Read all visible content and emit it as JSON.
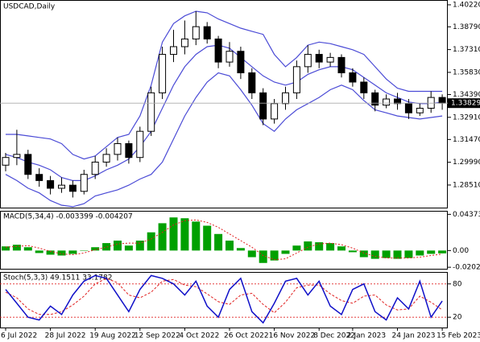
{
  "chart_data": [
    {
      "type": "candlestick",
      "title": "USDCAD,Daily",
      "categories": [
        "6 Jul 2022",
        null,
        null,
        null,
        "28 Jul 2022",
        null,
        null,
        null,
        "19 Aug 2022",
        null,
        null,
        null,
        "12 Sep 2022",
        null,
        null,
        null,
        "4 Oct 2022",
        null,
        null,
        null,
        "26 Oct 2022",
        null,
        null,
        null,
        "16 Nov 2022",
        null,
        null,
        null,
        "8 Dec 2022",
        null,
        null,
        "2 Jan 2023",
        null,
        null,
        null,
        "24 Jan 2023",
        null,
        null,
        null,
        "15 Feb 2023"
      ],
      "open": [
        1.298,
        1.303,
        1.305,
        1.292,
        1.288,
        1.283,
        1.285,
        1.281,
        1.292,
        1.3,
        1.305,
        1.312,
        1.303,
        1.32,
        1.345,
        1.37,
        1.375,
        1.38,
        1.388,
        1.38,
        1.365,
        1.372,
        1.358,
        1.345,
        1.328,
        1.338,
        1.345,
        1.362,
        1.37,
        1.365,
        1.368,
        1.358,
        1.352,
        1.345,
        1.337,
        1.341,
        1.338,
        1.332,
        1.335,
        1.342
      ],
      "high": [
        1.306,
        1.321,
        1.308,
        1.296,
        1.291,
        1.29,
        1.288,
        1.295,
        1.304,
        1.309,
        1.316,
        1.314,
        1.323,
        1.349,
        1.375,
        1.386,
        1.392,
        1.398,
        1.391,
        1.382,
        1.378,
        1.375,
        1.361,
        1.348,
        1.341,
        1.349,
        1.366,
        1.376,
        1.373,
        1.371,
        1.37,
        1.361,
        1.355,
        1.347,
        1.344,
        1.345,
        1.341,
        1.338,
        1.346,
        1.344
      ],
      "low": [
        1.294,
        1.298,
        1.289,
        1.284,
        1.279,
        1.28,
        1.277,
        1.279,
        1.289,
        1.297,
        1.301,
        1.299,
        1.3,
        1.317,
        1.341,
        1.365,
        1.37,
        1.376,
        1.377,
        1.361,
        1.362,
        1.354,
        1.341,
        1.324,
        1.325,
        1.334,
        1.341,
        1.358,
        1.361,
        1.362,
        1.355,
        1.349,
        1.341,
        1.333,
        1.335,
        1.334,
        1.328,
        1.33,
        1.332,
        1.334
      ],
      "close": [
        1.303,
        1.305,
        1.292,
        1.288,
        1.283,
        1.285,
        1.281,
        1.292,
        1.3,
        1.305,
        1.312,
        1.303,
        1.32,
        1.345,
        1.37,
        1.375,
        1.38,
        1.388,
        1.38,
        1.365,
        1.372,
        1.358,
        1.345,
        1.328,
        1.338,
        1.345,
        1.362,
        1.37,
        1.365,
        1.368,
        1.358,
        1.352,
        1.345,
        1.337,
        1.341,
        1.338,
        1.332,
        1.335,
        1.342,
        1.33829
      ],
      "bands": [
        {
          "color": "#4b4bd6",
          "values": [
            1.318,
            1.318,
            1.317,
            1.316,
            1.315,
            1.312,
            1.305,
            1.302,
            1.304,
            1.31,
            1.316,
            1.318,
            1.33,
            1.35,
            1.378,
            1.39,
            1.395,
            1.398,
            1.397,
            1.393,
            1.39,
            1.387,
            1.385,
            1.383,
            1.37,
            1.362,
            1.368,
            1.376,
            1.378,
            1.377,
            1.375,
            1.373,
            1.37,
            1.362,
            1.354,
            1.348,
            1.346,
            1.346,
            1.346,
            1.346
          ]
        },
        {
          "color": "#4b4bd6",
          "values": [
            1.305,
            1.303,
            1.3,
            1.298,
            1.295,
            1.29,
            1.288,
            1.288,
            1.291,
            1.295,
            1.298,
            1.302,
            1.31,
            1.32,
            1.335,
            1.35,
            1.362,
            1.37,
            1.375,
            1.376,
            1.374,
            1.368,
            1.362,
            1.356,
            1.352,
            1.35,
            1.352,
            1.357,
            1.36,
            1.362,
            1.362,
            1.36,
            1.355,
            1.35,
            1.345,
            1.342,
            1.339,
            1.338,
            1.338,
            1.339
          ]
        },
        {
          "color": "#4b4bd6",
          "values": [
            1.292,
            1.288,
            1.283,
            1.28,
            1.275,
            1.272,
            1.271,
            1.273,
            1.278,
            1.28,
            1.282,
            1.285,
            1.289,
            1.292,
            1.3,
            1.315,
            1.33,
            1.342,
            1.352,
            1.358,
            1.356,
            1.347,
            1.337,
            1.325,
            1.32,
            1.328,
            1.334,
            1.338,
            1.342,
            1.347,
            1.35,
            1.347,
            1.34,
            1.334,
            1.332,
            1.33,
            1.329,
            1.328,
            1.329,
            1.33
          ]
        }
      ],
      "ylim": [
        1.2699,
        1.4048
      ],
      "yticks": [
        {
          "value": 1.4022,
          "label": "1.40220"
        },
        {
          "value": 1.3879,
          "label": "1.38790"
        },
        {
          "value": 1.3731,
          "label": "1.37310"
        },
        {
          "value": 1.3583,
          "label": "1.35830"
        },
        {
          "value": 1.3439,
          "label": "1.34390"
        },
        {
          "value": 1.3291,
          "label": "1.32910"
        },
        {
          "value": 1.3147,
          "label": "1.31470"
        },
        {
          "value": 1.2999,
          "label": "1.29990"
        },
        {
          "value": 1.2851,
          "label": "1.28510"
        }
      ]
    },
    {
      "type": "macd",
      "title": "MACD(5,34,4) -0.003399 -0.004207",
      "color": "#00a000",
      "signal_color": "#e02020",
      "values": [
        0.005,
        0.007,
        0.004,
        -0.003,
        -0.005,
        -0.006,
        -0.004,
        0.0,
        0.004,
        0.009,
        0.012,
        0.006,
        0.012,
        0.022,
        0.033,
        0.04,
        0.039,
        0.035,
        0.03,
        0.02,
        0.012,
        0.003,
        -0.008,
        -0.015,
        -0.012,
        -0.004,
        0.006,
        0.011,
        0.01,
        0.009,
        0.005,
        -0.002,
        -0.008,
        -0.01,
        -0.009,
        -0.01,
        -0.009,
        -0.006,
        -0.004,
        -0.003399
      ],
      "signal": [
        0.004,
        0.005,
        0.006,
        0.003,
        -0.001,
        -0.004,
        -0.005,
        -0.003,
        0.001,
        0.004,
        0.008,
        0.009,
        0.009,
        0.014,
        0.022,
        0.031,
        0.036,
        0.037,
        0.034,
        0.028,
        0.02,
        0.012,
        0.004,
        -0.006,
        -0.011,
        -0.01,
        -0.003,
        0.004,
        0.008,
        0.009,
        0.007,
        0.003,
        -0.003,
        -0.007,
        -0.009,
        -0.009,
        -0.009,
        -0.008,
        -0.006,
        -0.004207
      ],
      "ylim": [
        -0.023,
        0.047
      ],
      "yticks": [
        0.043734,
        {
          "value": 0,
          "label": "0.00"
        },
        -0.020207
      ]
    },
    {
      "type": "stochastic",
      "title": "Stoch(5,3,3) 49.1511 33.1782",
      "k_color": "#1010c8",
      "d_color": "#e02020",
      "level_color": "#e02020",
      "k": [
        70,
        45,
        20,
        15,
        40,
        25,
        60,
        85,
        95,
        90,
        60,
        30,
        70,
        95,
        90,
        80,
        60,
        85,
        40,
        20,
        70,
        90,
        30,
        10,
        45,
        85,
        90,
        60,
        85,
        40,
        25,
        70,
        80,
        30,
        15,
        55,
        35,
        85,
        20,
        49.1511
      ],
      "d": [
        65,
        55,
        35,
        25,
        25,
        30,
        42,
        58,
        80,
        90,
        82,
        60,
        55,
        65,
        85,
        88,
        78,
        75,
        62,
        48,
        43,
        60,
        63,
        43,
        28,
        47,
        73,
        78,
        78,
        62,
        50,
        45,
        58,
        60,
        42,
        33,
        35,
        58,
        47,
        33.1782
      ],
      "ylim": [
        0,
        100
      ],
      "yticks": [
        80,
        20
      ]
    }
  ]
}
